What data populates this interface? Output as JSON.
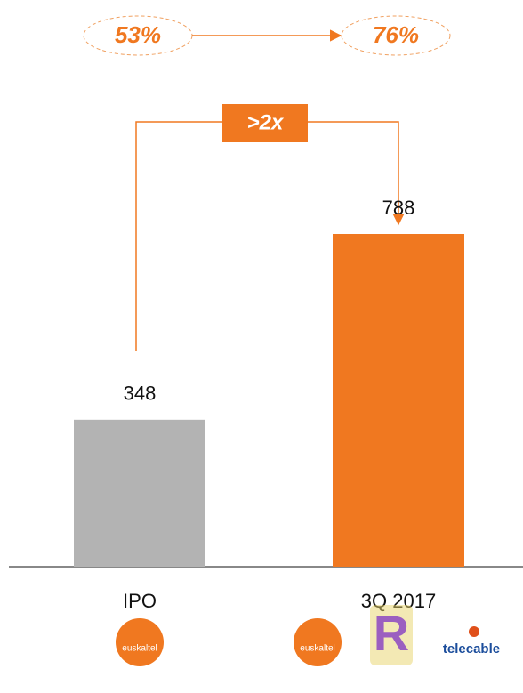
{
  "chart_data": {
    "type": "bar",
    "categories": [
      "IPO",
      "3Q 2017"
    ],
    "values": [
      348,
      788
    ],
    "colors": [
      "#b3b3b3",
      "#f07820"
    ],
    "annotations": {
      "start": "53%",
      "end": "76%",
      "growth": ">2x"
    },
    "logos": [
      [
        "euskaltel"
      ],
      [
        "euskaltel",
        "R",
        "telecable"
      ]
    ]
  }
}
